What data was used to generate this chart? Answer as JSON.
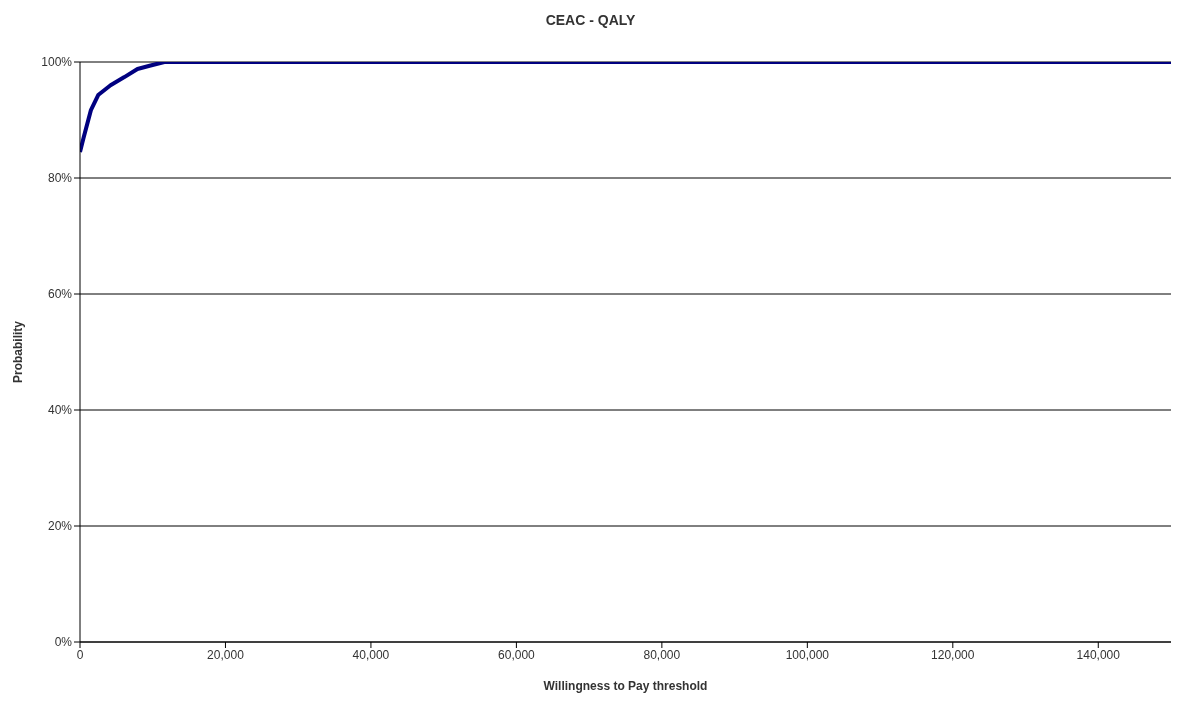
{
  "chart_data": {
    "type": "line",
    "title": "CEAC - QALY",
    "xlabel": "Willingness to Pay threshold",
    "ylabel": "Probability",
    "x": [
      0,
      500,
      1500,
      2500,
      4200,
      6100,
      7900,
      9700,
      11600,
      20000,
      40000,
      60000,
      80000,
      100000,
      120000,
      140000,
      150000
    ],
    "series": [
      {
        "color": "#000080",
        "values": [
          84.5,
          87,
          91.7,
          94.3,
          96,
          97.4,
          98.8,
          99.4,
          100,
          100,
          100,
          100,
          100,
          100,
          100,
          100,
          100
        ]
      }
    ],
    "xlim": [
      0,
      150000
    ],
    "xticks": [
      {
        "value": 0,
        "label": "0"
      },
      {
        "value": 20000,
        "label": "20,000"
      },
      {
        "value": 40000,
        "label": "40,000"
      },
      {
        "value": 60000,
        "label": "60,000"
      },
      {
        "value": 80000,
        "label": "80,000"
      },
      {
        "value": 100000,
        "label": "100,000"
      },
      {
        "value": 120000,
        "label": "120,000"
      },
      {
        "value": 140000,
        "label": "140,000"
      }
    ],
    "ylim": [
      0,
      100
    ],
    "yticks": [
      {
        "value": 0,
        "label": "0%"
      },
      {
        "value": 20,
        "label": "20%"
      },
      {
        "value": 40,
        "label": "40%"
      },
      {
        "value": 60,
        "label": "60%"
      },
      {
        "value": 80,
        "label": "80%"
      },
      {
        "value": 100,
        "label": "100%"
      }
    ],
    "grid": "y",
    "legend": false,
    "marker": "none",
    "line_style": "solid"
  }
}
